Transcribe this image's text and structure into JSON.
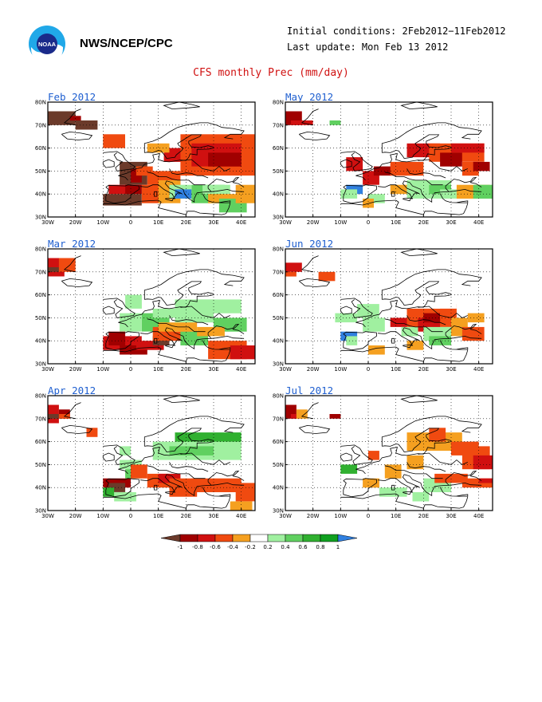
{
  "header": {
    "org": "NWS/NCEP/CPC",
    "initial_conditions": "Initial conditions: 2Feb2012−11Feb2012",
    "last_update": "Last update: Mon Feb 13 2012",
    "logo_icon": "noaa-logo-icon",
    "logo_text": "NOAA"
  },
  "title": "CFS monthly Prec (mm/day)",
  "axes": {
    "lat_labels": [
      "80N",
      "70N",
      "60N",
      "50N",
      "40N",
      "30N"
    ],
    "lon_labels": [
      "30W",
      "20W",
      "10W",
      "0",
      "10E",
      "20E",
      "30E",
      "40E"
    ]
  },
  "panels": [
    {
      "title": "Feb 2012",
      "col": 0,
      "row": 0
    },
    {
      "title": "May 2012",
      "col": 1,
      "row": 0
    },
    {
      "title": "Mar 2012",
      "col": 0,
      "row": 1
    },
    {
      "title": "Jun 2012",
      "col": 1,
      "row": 1
    },
    {
      "title": "Apr 2012",
      "col": 0,
      "row": 2
    },
    {
      "title": "Jul 2012",
      "col": 1,
      "row": 2
    }
  ],
  "colorbar": {
    "labels": [
      "-1",
      "-0.8",
      "-0.6",
      "-0.4",
      "-0.2",
      "0.2",
      "0.4",
      "0.6",
      "0.8",
      "1"
    ],
    "colors": [
      "#6b3a2a",
      "#a00000",
      "#d01010",
      "#f04a10",
      "#f5a020",
      "#ffffff",
      "#a0f0a0",
      "#60d060",
      "#30b030",
      "#10a020",
      "#3080e0"
    ]
  }
}
